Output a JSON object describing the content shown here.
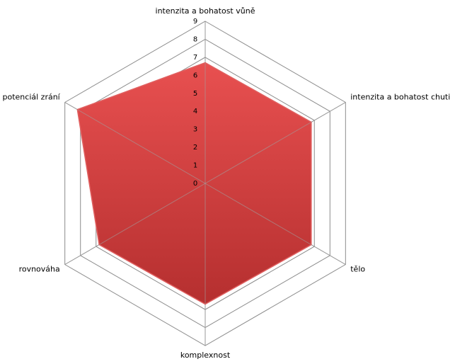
{
  "chart_data": {
    "type": "radar",
    "categories": [
      "intenzita a bohatost  vůně",
      "intenzita a bohatost  chuti",
      "tělo",
      "komplexnost",
      "rovnováha",
      "potenciál zrání"
    ],
    "values": [
      6.7,
      6.8,
      6.8,
      6.7,
      6.8,
      8.2
    ],
    "color": "#d84040",
    "ylim": [
      0,
      9
    ],
    "yticks": [
      0,
      1,
      2,
      3,
      4,
      5,
      6,
      7,
      8,
      9
    ],
    "grid": true
  }
}
